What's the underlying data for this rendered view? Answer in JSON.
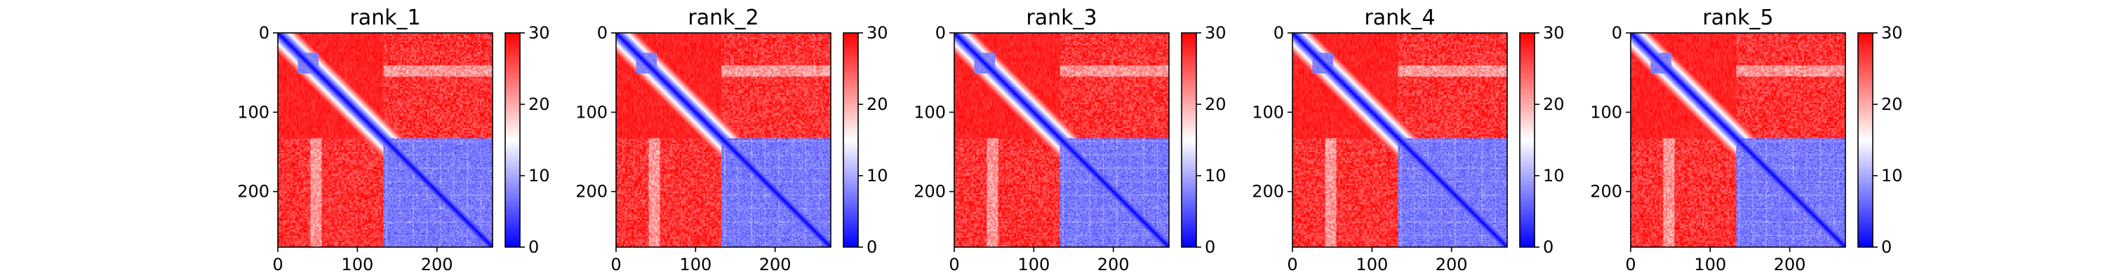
{
  "chart_data": [
    {
      "type": "heatmap",
      "title": "rank_1",
      "x_ticks": [
        0,
        100,
        200
      ],
      "y_ticks": [
        0,
        100,
        200
      ],
      "xlim": [
        0,
        270
      ],
      "ylim": [
        270,
        0
      ],
      "colorbar": {
        "ticks": [
          0,
          10,
          20,
          30
        ],
        "range": [
          0,
          30
        ],
        "colormap": "bwr",
        "colors": [
          "#0000ff",
          "#ffffff",
          "#ff0000"
        ]
      },
      "grid": false,
      "domain_boundary": 133,
      "inter_domain_distance": 27,
      "intra_domain_distance": 4,
      "upper_domain_distance": 28,
      "subdomain": {
        "start": 25,
        "end": 50,
        "distance": 6
      }
    },
    {
      "type": "heatmap",
      "title": "rank_2",
      "x_ticks": [
        0,
        100,
        200
      ],
      "y_ticks": [
        0,
        100,
        200
      ],
      "xlim": [
        0,
        270
      ],
      "ylim": [
        270,
        0
      ],
      "colorbar": {
        "ticks": [
          0,
          10,
          20,
          30
        ],
        "range": [
          0,
          30
        ],
        "colormap": "bwr",
        "colors": [
          "#0000ff",
          "#ffffff",
          "#ff0000"
        ]
      },
      "grid": false,
      "domain_boundary": 133,
      "inter_domain_distance": 27,
      "intra_domain_distance": 4,
      "upper_domain_distance": 28,
      "subdomain": {
        "start": 25,
        "end": 50,
        "distance": 6
      }
    },
    {
      "type": "heatmap",
      "title": "rank_3",
      "x_ticks": [
        0,
        100,
        200
      ],
      "y_ticks": [
        0,
        100,
        200
      ],
      "xlim": [
        0,
        270
      ],
      "ylim": [
        270,
        0
      ],
      "colorbar": {
        "ticks": [
          0,
          10,
          20,
          30
        ],
        "range": [
          0,
          30
        ],
        "colormap": "bwr",
        "colors": [
          "#0000ff",
          "#ffffff",
          "#ff0000"
        ]
      },
      "grid": false,
      "domain_boundary": 133,
      "inter_domain_distance": 27,
      "intra_domain_distance": 4,
      "upper_domain_distance": 28,
      "subdomain": {
        "start": 25,
        "end": 50,
        "distance": 6
      }
    },
    {
      "type": "heatmap",
      "title": "rank_4",
      "x_ticks": [
        0,
        100,
        200
      ],
      "y_ticks": [
        0,
        100,
        200
      ],
      "xlim": [
        0,
        270
      ],
      "ylim": [
        270,
        0
      ],
      "colorbar": {
        "ticks": [
          0,
          10,
          20,
          30
        ],
        "range": [
          0,
          30
        ],
        "colormap": "bwr",
        "colors": [
          "#0000ff",
          "#ffffff",
          "#ff0000"
        ]
      },
      "grid": false,
      "domain_boundary": 133,
      "inter_domain_distance": 27,
      "intra_domain_distance": 4,
      "upper_domain_distance": 28,
      "subdomain": {
        "start": 25,
        "end": 50,
        "distance": 6
      }
    },
    {
      "type": "heatmap",
      "title": "rank_5",
      "x_ticks": [
        0,
        100,
        200
      ],
      "y_ticks": [
        0,
        100,
        200
      ],
      "xlim": [
        0,
        270
      ],
      "ylim": [
        270,
        0
      ],
      "colorbar": {
        "ticks": [
          0,
          10,
          20,
          30
        ],
        "range": [
          0,
          30
        ],
        "colormap": "bwr",
        "colors": [
          "#0000ff",
          "#ffffff",
          "#ff0000"
        ]
      },
      "grid": false,
      "domain_boundary": 133,
      "inter_domain_distance": 27,
      "intra_domain_distance": 4,
      "upper_domain_distance": 28,
      "subdomain": {
        "start": 25,
        "end": 50,
        "distance": 6
      }
    }
  ]
}
